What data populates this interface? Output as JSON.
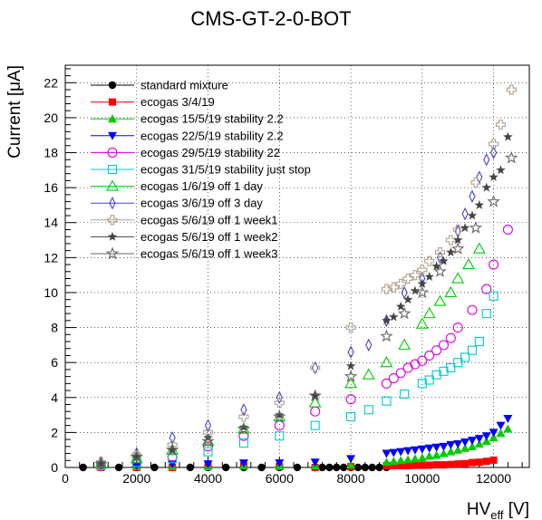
{
  "chart_data": {
    "type": "scatter",
    "title": "CMS-GT-2-0-BOT",
    "xlabel": {
      "main": "HV",
      "sub": "eff",
      "unit": " [V]"
    },
    "ylabel": "Current [μA]",
    "xlim": [
      0,
      13000
    ],
    "ylim": [
      0,
      23
    ],
    "xticks": [
      0,
      2000,
      4000,
      6000,
      8000,
      10000,
      12000
    ],
    "xtick_labels": [
      "0",
      "2000",
      "4000",
      "6000",
      "8000",
      "10000",
      "12000"
    ],
    "yticks": [
      0,
      2,
      4,
      6,
      8,
      10,
      12,
      14,
      16,
      18,
      20,
      22
    ],
    "ytick_labels": [
      "0",
      "2",
      "4",
      "6",
      "8",
      "10",
      "12",
      "14",
      "16",
      "18",
      "20",
      "22"
    ],
    "grid": true,
    "legend_position": "top-left",
    "series": [
      {
        "name": "standard mixture",
        "marker": "filled-circle",
        "color": "#000000",
        "x": [
          500,
          1000,
          1500,
          2000,
          2500,
          3000,
          3500,
          4000,
          4500,
          5000,
          5500,
          6000,
          6500,
          7000,
          7200,
          7400,
          7600,
          7800,
          8000,
          8200,
          8400,
          8600,
          8800,
          9000
        ],
        "y": [
          0,
          0,
          0,
          0,
          0,
          0,
          0,
          0,
          0,
          0,
          0,
          0,
          0,
          0,
          0,
          0,
          0,
          0,
          0,
          0,
          0,
          0,
          0,
          0
        ]
      },
      {
        "name": "ecogas 3/4/19",
        "marker": "filled-square",
        "color": "#ff0000",
        "x": [
          1000,
          2000,
          3000,
          4000,
          5000,
          6000,
          7000,
          8000,
          9000,
          9200,
          9400,
          9600,
          9800,
          10000,
          10200,
          10400,
          10600,
          10800,
          11000,
          11200,
          11400,
          11600,
          11800,
          12000
        ],
        "y": [
          0,
          0,
          0,
          0.05,
          0.1,
          0.05,
          0,
          0.05,
          0.1,
          0.1,
          0.1,
          0.1,
          0.12,
          0.12,
          0.13,
          0.15,
          0.15,
          0.17,
          0.2,
          0.22,
          0.28,
          0.3,
          0.35,
          0.42
        ]
      },
      {
        "name": "ecogas 15/5/19 stability 2.2",
        "marker": "filled-triangle-up",
        "color": "#00cc00",
        "x": [
          1000,
          2000,
          3000,
          4000,
          5000,
          6000,
          7000,
          8000,
          9000,
          9200,
          9400,
          9600,
          9800,
          10000,
          10200,
          10400,
          10600,
          10800,
          11000,
          11200,
          11400,
          11600,
          11800,
          12000,
          12200,
          12400
        ],
        "y": [
          0.05,
          0.05,
          0.05,
          0.05,
          0.1,
          0.1,
          0.1,
          0.15,
          0.3,
          0.35,
          0.4,
          0.45,
          0.5,
          0.55,
          0.65,
          0.7,
          0.8,
          0.9,
          1.0,
          1.1,
          1.2,
          1.35,
          1.5,
          1.7,
          1.95,
          2.2
        ]
      },
      {
        "name": "ecogas 22/5/19 stability 2.2",
        "marker": "filled-triangle-down",
        "color": "#0000ff",
        "x": [
          1000,
          2000,
          3000,
          4000,
          5000,
          6000,
          7000,
          8000,
          9000,
          9200,
          9400,
          9600,
          9800,
          10000,
          10200,
          10400,
          10600,
          10800,
          11000,
          11200,
          11400,
          11600,
          11800,
          12000,
          12200,
          12400
        ],
        "y": [
          0.1,
          0.1,
          0.2,
          0.2,
          0.25,
          0.25,
          0.3,
          0.5,
          0.8,
          0.85,
          0.9,
          0.95,
          1.0,
          1.05,
          1.1,
          1.15,
          1.2,
          1.3,
          1.35,
          1.45,
          1.55,
          1.65,
          1.8,
          2.0,
          2.4,
          2.8
        ]
      },
      {
        "name": "ecogas 29/5/19 stability 22",
        "marker": "open-circle",
        "color": "#dd00dd",
        "x": [
          1000,
          2000,
          3000,
          4000,
          5000,
          6000,
          7000,
          8000,
          9000,
          9200,
          9400,
          9600,
          9800,
          10000,
          10200,
          10400,
          10600,
          10800,
          11000,
          11400,
          11800,
          12000,
          12400
        ],
        "y": [
          0.1,
          0.3,
          0.6,
          1.2,
          1.8,
          2.4,
          3.2,
          3.9,
          4.8,
          5.1,
          5.4,
          5.7,
          5.9,
          6.1,
          6.4,
          6.7,
          7.0,
          7.4,
          8.0,
          9.0,
          10.2,
          11.6,
          13.6
        ]
      },
      {
        "name": "ecogas 31/5/19 stability just stop",
        "marker": "open-square",
        "color": "#00cccc",
        "x": [
          1000,
          2000,
          3000,
          4000,
          5000,
          6000,
          7000,
          8000,
          8500,
          9000,
          9500,
          10000,
          10200,
          10400,
          10600,
          10800,
          11000,
          11200,
          11400,
          11600,
          11800,
          12000
        ],
        "y": [
          0.1,
          0.3,
          0.5,
          0.9,
          1.4,
          1.8,
          2.4,
          2.9,
          3.3,
          3.8,
          4.2,
          4.8,
          5.0,
          5.3,
          5.5,
          5.7,
          6.0,
          6.3,
          6.7,
          7.2,
          8.8,
          9.8
        ]
      },
      {
        "name": "ecogas 1/6/19 off 1 day",
        "marker": "open-triangle-up",
        "color": "#00cc00",
        "x": [
          1000,
          2000,
          3000,
          4000,
          5000,
          6000,
          7000,
          8000,
          8500,
          9000,
          9500,
          10000,
          10200,
          10500,
          10800,
          11000,
          11300,
          11600
        ],
        "y": [
          0.2,
          0.5,
          1.0,
          1.5,
          2.2,
          2.9,
          3.7,
          4.8,
          5.3,
          6.0,
          7.0,
          8.2,
          8.8,
          9.5,
          10.0,
          10.8,
          11.6,
          12.5
        ]
      },
      {
        "name": "ecogas 3/6/19 off 3 day",
        "marker": "open-diamond",
        "color": "#4444cc",
        "x": [
          1000,
          2000,
          3000,
          4000,
          5000,
          6000,
          7000,
          8000,
          8500,
          9000,
          9500,
          10000,
          10500,
          11000,
          11200,
          11400,
          11600,
          11800,
          12000
        ],
        "y": [
          0.3,
          0.8,
          1.7,
          2.4,
          3.3,
          4.0,
          5.7,
          6.6,
          7.0,
          8.4,
          10.0,
          10.8,
          12.0,
          13.5,
          14.5,
          15.5,
          16.6,
          17.6,
          18.0
        ]
      },
      {
        "name": "ecogas 5/6/19 off 1 week1",
        "marker": "open-cross",
        "color": "#b0a090",
        "x": [
          1000,
          2000,
          3000,
          4000,
          5000,
          6000,
          7000,
          8000,
          9000,
          9200,
          9400,
          9600,
          9800,
          10000,
          10200,
          10500,
          10800,
          11000,
          11500,
          12000,
          12200,
          12500
        ],
        "y": [
          0.3,
          0.7,
          1.3,
          2.0,
          2.9,
          3.7,
          5.7,
          8.0,
          10.2,
          10.3,
          10.5,
          10.8,
          11.0,
          11.3,
          11.8,
          12.3,
          13.0,
          13.6,
          16.3,
          18.5,
          19.6,
          21.6
        ]
      },
      {
        "name": "ecogas 5/6/19 off 1 week2",
        "marker": "filled-star",
        "color": "#444444",
        "x": [
          1000,
          2000,
          3000,
          4000,
          5000,
          6000,
          7000,
          8000,
          9000,
          9200,
          9400,
          9600,
          9800,
          10000,
          10200,
          10400,
          10600,
          10800,
          11000,
          11200,
          11400,
          11600,
          11800,
          12000,
          12200,
          12400
        ],
        "y": [
          0.2,
          0.6,
          1.0,
          1.7,
          2.3,
          3.0,
          4.1,
          5.8,
          8.4,
          8.6,
          9.2,
          9.6,
          10.1,
          10.5,
          10.9,
          11.5,
          11.8,
          12.3,
          13.0,
          13.7,
          14.4,
          15.0,
          16.0,
          16.6,
          17.0,
          18.9
        ]
      },
      {
        "name": "ecogas 5/6/19 off 1 week3",
        "marker": "open-star",
        "color": "#666666",
        "x": [
          1000,
          2000,
          3000,
          4000,
          5000,
          6000,
          7000,
          8000,
          9000,
          9500,
          10000,
          10500,
          11000,
          11500,
          12000,
          12500
        ],
        "y": [
          0.2,
          0.6,
          1.0,
          1.5,
          2.2,
          2.9,
          4.1,
          5.2,
          7.5,
          8.8,
          10.0,
          11.2,
          12.5,
          13.7,
          15.2,
          17.7
        ]
      }
    ]
  }
}
